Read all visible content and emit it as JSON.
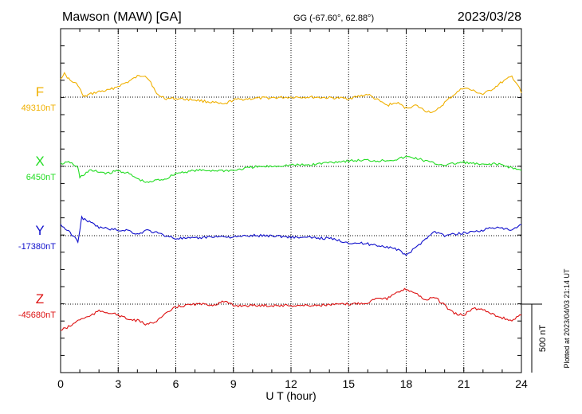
{
  "header": {
    "station": "Mawson (MAW)  [GA]",
    "coords": "GG (-67.60°,  62.88°)",
    "date": "2023/03/28"
  },
  "footer": {
    "plotted": "Plotted at 2023/04/03 21:14 UT"
  },
  "colors": {
    "F": "#f0b000",
    "X": "#22dd22",
    "Y": "#1010cc",
    "Z": "#dd1111"
  },
  "chart_data": {
    "type": "line",
    "title": "Mawson (MAW)  [GA]",
    "xlabel": "U T (hour)",
    "xlim": [
      0,
      24
    ],
    "xticks": [
      "0",
      "3",
      "6",
      "9",
      "12",
      "15",
      "18",
      "21",
      "24"
    ],
    "grid": true,
    "scale_bar": {
      "label": "500 nT",
      "value_nT": 500
    },
    "series": [
      {
        "name": "F",
        "baseline_label": "49310nT",
        "baseline": 49310,
        "points": [
          [
            0,
            49450
          ],
          [
            0.2,
            49480
          ],
          [
            0.5,
            49430
          ],
          [
            0.9,
            49400
          ],
          [
            1.2,
            49310
          ],
          [
            1.5,
            49330
          ],
          [
            2,
            49350
          ],
          [
            2.5,
            49360
          ],
          [
            3,
            49390
          ],
          [
            3.5,
            49420
          ],
          [
            4,
            49460
          ],
          [
            4.4,
            49470
          ],
          [
            4.7,
            49420
          ],
          [
            5,
            49330
          ],
          [
            5.5,
            49300
          ],
          [
            6,
            49300
          ],
          [
            7,
            49290
          ],
          [
            8,
            49270
          ],
          [
            8.5,
            49255
          ],
          [
            9,
            49290
          ],
          [
            10,
            49300
          ],
          [
            11,
            49305
          ],
          [
            12,
            49310
          ],
          [
            13,
            49310
          ],
          [
            14,
            49305
          ],
          [
            15,
            49300
          ],
          [
            16,
            49330
          ],
          [
            17,
            49250
          ],
          [
            17.5,
            49270
          ],
          [
            18,
            49230
          ],
          [
            18.5,
            49250
          ],
          [
            19,
            49210
          ],
          [
            19.5,
            49200
          ],
          [
            20,
            49270
          ],
          [
            20.5,
            49330
          ],
          [
            21,
            49380
          ],
          [
            22,
            49330
          ],
          [
            22.5,
            49370
          ],
          [
            23,
            49420
          ],
          [
            23.5,
            49460
          ],
          [
            23.8,
            49400
          ],
          [
            24,
            49340
          ]
        ]
      },
      {
        "name": "X",
        "baseline_label": "6450nT",
        "baseline": 6450,
        "points": [
          [
            0,
            6470
          ],
          [
            0.5,
            6480
          ],
          [
            0.9,
            6440
          ],
          [
            1,
            6370
          ],
          [
            1.5,
            6420
          ],
          [
            2,
            6410
          ],
          [
            2.5,
            6400
          ],
          [
            3,
            6420
          ],
          [
            3.5,
            6400
          ],
          [
            4,
            6360
          ],
          [
            4.5,
            6330
          ],
          [
            5,
            6350
          ],
          [
            5.5,
            6360
          ],
          [
            6,
            6400
          ],
          [
            7,
            6420
          ],
          [
            8,
            6420
          ],
          [
            9,
            6420
          ],
          [
            10,
            6445
          ],
          [
            11,
            6450
          ],
          [
            12,
            6460
          ],
          [
            13,
            6460
          ],
          [
            14,
            6480
          ],
          [
            15,
            6490
          ],
          [
            16,
            6495
          ],
          [
            16.5,
            6490
          ],
          [
            17,
            6495
          ],
          [
            17.5,
            6500
          ],
          [
            18,
            6520
          ],
          [
            18.5,
            6510
          ],
          [
            19,
            6490
          ],
          [
            19.5,
            6470
          ],
          [
            20,
            6460
          ],
          [
            20.5,
            6470
          ],
          [
            21,
            6480
          ],
          [
            21.5,
            6470
          ],
          [
            22,
            6460
          ],
          [
            22.5,
            6470
          ],
          [
            23,
            6460
          ],
          [
            23.5,
            6440
          ],
          [
            24,
            6420
          ]
        ]
      },
      {
        "name": "Y",
        "baseline_label": "-17380nT",
        "baseline": -17380,
        "points": [
          [
            0,
            -17300
          ],
          [
            0.5,
            -17360
          ],
          [
            0.9,
            -17420
          ],
          [
            1.1,
            -17250
          ],
          [
            1.5,
            -17280
          ],
          [
            2,
            -17320
          ],
          [
            2.5,
            -17330
          ],
          [
            3,
            -17340
          ],
          [
            3.5,
            -17340
          ],
          [
            4,
            -17370
          ],
          [
            4.5,
            -17340
          ],
          [
            5,
            -17360
          ],
          [
            5.5,
            -17380
          ],
          [
            6,
            -17400
          ],
          [
            7,
            -17400
          ],
          [
            8,
            -17385
          ],
          [
            9,
            -17390
          ],
          [
            10,
            -17380
          ],
          [
            11,
            -17380
          ],
          [
            12,
            -17390
          ],
          [
            13,
            -17395
          ],
          [
            14,
            -17400
          ],
          [
            15,
            -17430
          ],
          [
            16,
            -17440
          ],
          [
            17,
            -17460
          ],
          [
            17.5,
            -17480
          ],
          [
            18,
            -17520
          ],
          [
            18.5,
            -17470
          ],
          [
            19,
            -17400
          ],
          [
            19.5,
            -17350
          ],
          [
            20,
            -17380
          ],
          [
            20.5,
            -17370
          ],
          [
            21,
            -17360
          ],
          [
            21.5,
            -17350
          ],
          [
            22,
            -17340
          ],
          [
            22.5,
            -17320
          ],
          [
            23,
            -17330
          ],
          [
            23.5,
            -17340
          ],
          [
            24,
            -17300
          ]
        ]
      },
      {
        "name": "Z",
        "baseline_label": "-45680nT",
        "baseline": -45680,
        "points": [
          [
            0,
            -45870
          ],
          [
            0.5,
            -45840
          ],
          [
            1,
            -45790
          ],
          [
            1.5,
            -45770
          ],
          [
            2,
            -45730
          ],
          [
            2.5,
            -45740
          ],
          [
            3,
            -45760
          ],
          [
            3.5,
            -45790
          ],
          [
            4,
            -45800
          ],
          [
            4.5,
            -45830
          ],
          [
            5,
            -45800
          ],
          [
            5.5,
            -45750
          ],
          [
            6,
            -45700
          ],
          [
            6.5,
            -45690
          ],
          [
            7,
            -45680
          ],
          [
            8,
            -45685
          ],
          [
            8.5,
            -45660
          ],
          [
            9,
            -45690
          ],
          [
            10,
            -45690
          ],
          [
            11,
            -45690
          ],
          [
            12,
            -45690
          ],
          [
            13,
            -45690
          ],
          [
            14,
            -45685
          ],
          [
            15,
            -45680
          ],
          [
            16,
            -45670
          ],
          [
            16.5,
            -45630
          ],
          [
            17,
            -45640
          ],
          [
            17.5,
            -45600
          ],
          [
            18,
            -45570
          ],
          [
            18.5,
            -45600
          ],
          [
            19,
            -45650
          ],
          [
            19.5,
            -45630
          ],
          [
            20,
            -45690
          ],
          [
            20.5,
            -45750
          ],
          [
            21,
            -45760
          ],
          [
            21.5,
            -45710
          ],
          [
            22,
            -45720
          ],
          [
            22.5,
            -45750
          ],
          [
            23,
            -45780
          ],
          [
            23.5,
            -45800
          ],
          [
            24,
            -45760
          ]
        ]
      }
    ]
  }
}
